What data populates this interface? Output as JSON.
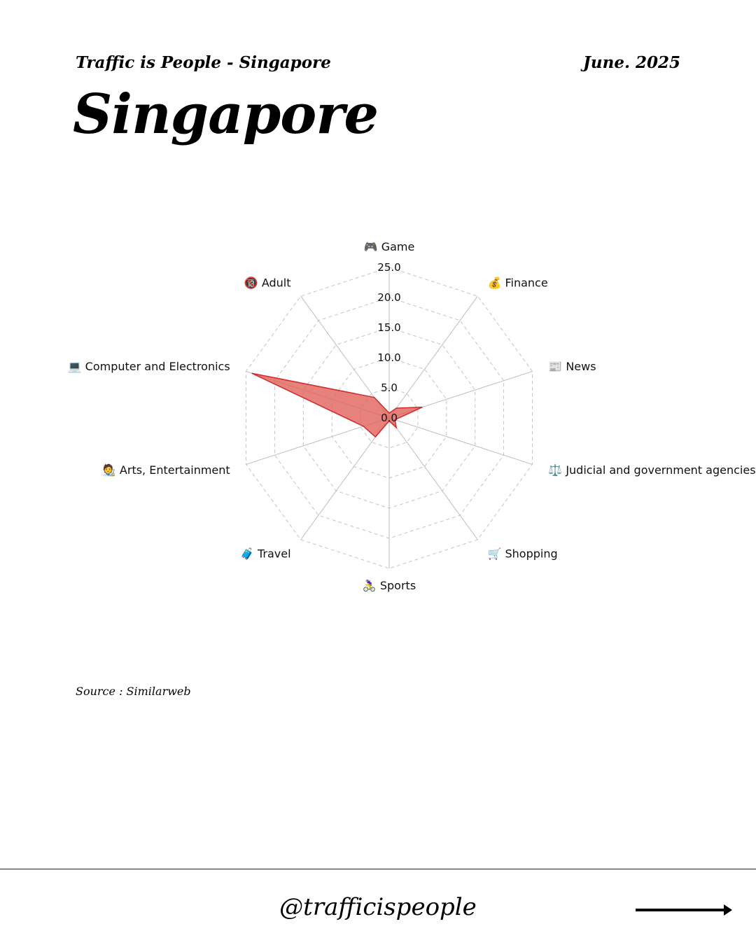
{
  "header": {
    "kicker": "Traffic is People - Singapore",
    "date": "June. 2025",
    "title": "Singapore"
  },
  "source": "Source : Similarweb",
  "footer": {
    "handle": "@trafficispeople",
    "arrow_icon": "arrow-right-icon"
  },
  "chart_data": {
    "type": "radar",
    "axes": [
      {
        "icon": "🎮",
        "label": "Game"
      },
      {
        "icon": "💰",
        "label": "Finance"
      },
      {
        "icon": "📰",
        "label": "News"
      },
      {
        "icon": "⚖️",
        "label": "Judicial and government agencies"
      },
      {
        "icon": "🛒",
        "label": "Shopping"
      },
      {
        "icon": "🚴‍♀️",
        "label": "Sports"
      },
      {
        "icon": "🧳",
        "label": "Travel"
      },
      {
        "icon": "🧑‍🎨",
        "label": "Arts, Entertainment"
      },
      {
        "icon": "💻",
        "label": "Computer and Electronics"
      },
      {
        "icon": "🔞",
        "label": "Adult"
      }
    ],
    "values": [
      0.8,
      2.0,
      5.8,
      1.0,
      2.0,
      0.5,
      3.9,
      4.5,
      24.0,
      4.2
    ],
    "ticks": [
      "0.0",
      "5.0",
      "10.0",
      "15.0",
      "20.0",
      "25.0"
    ],
    "rmax": 25,
    "grid": true,
    "fill_color": "#e0625a",
    "stroke_color": "#d12b2b"
  }
}
